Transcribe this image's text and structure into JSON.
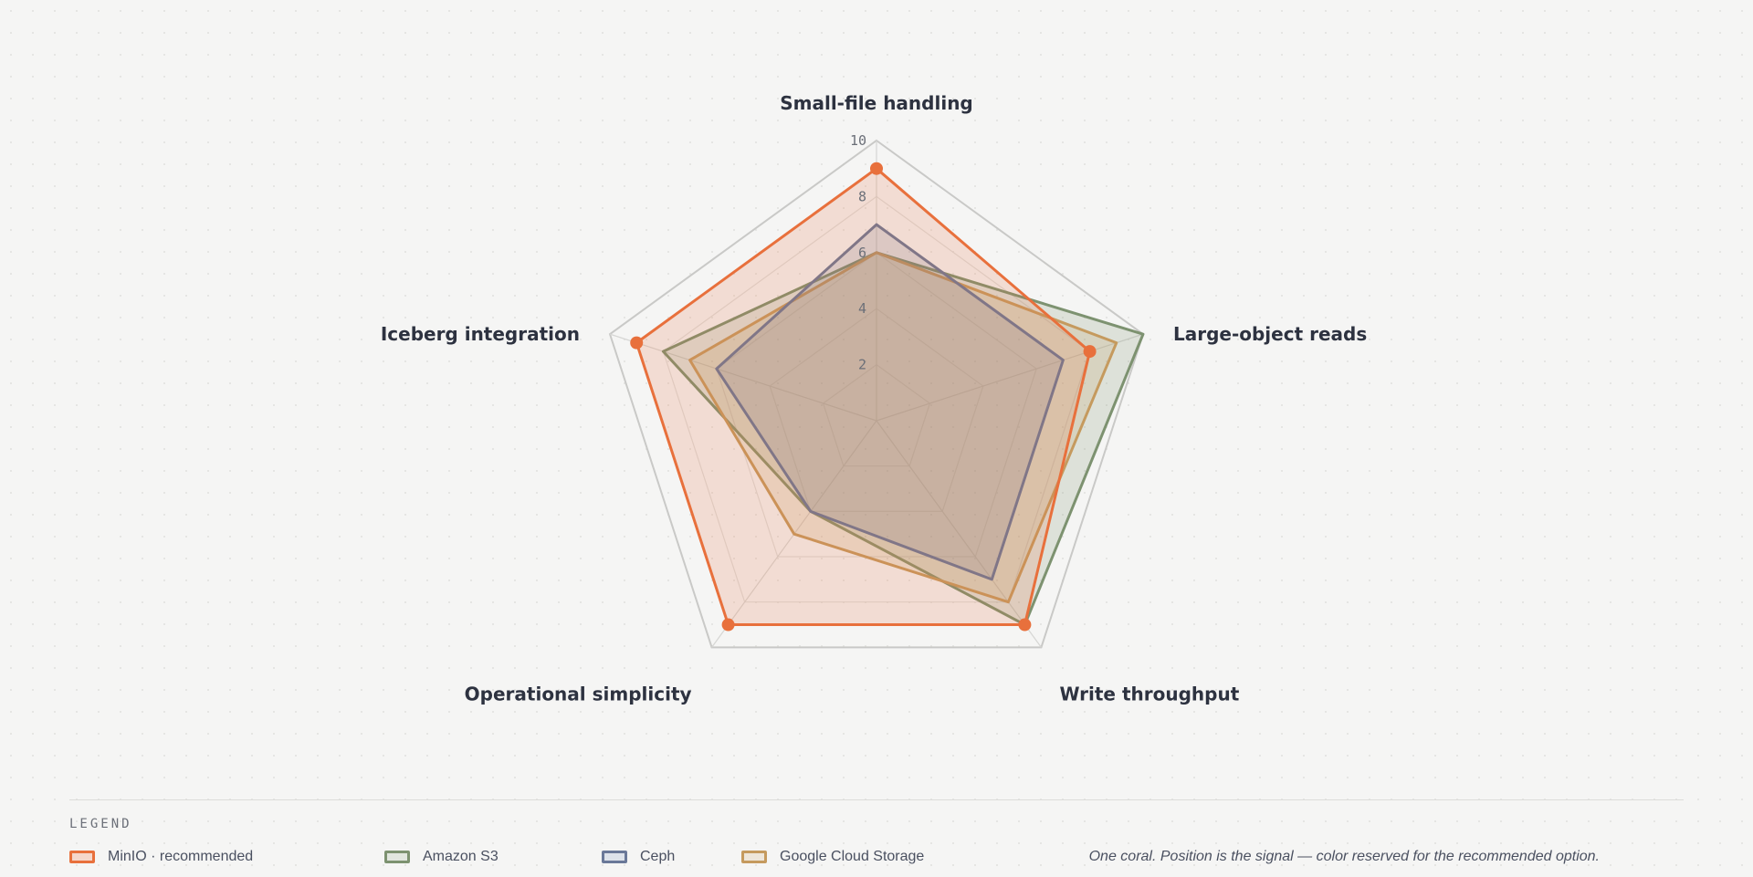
{
  "chart_data": {
    "type": "radar",
    "axes": [
      "Small-file handling",
      "Large-object reads",
      "Write throughput",
      "Operational simplicity",
      "Iceberg integration"
    ],
    "rlim": [
      0,
      10
    ],
    "ticks": [
      "2",
      "4",
      "6",
      "8",
      "10"
    ],
    "grid": true,
    "legend_placement": "bottom",
    "series": [
      {
        "name": "Amazon S3",
        "values": [
          6,
          10,
          9,
          4,
          8
        ],
        "color": "#7d9270",
        "highlight": false
      },
      {
        "name": "Google Cloud Storage",
        "values": [
          6,
          9,
          8,
          5,
          7
        ],
        "color": "#c59a5e",
        "highlight": false
      },
      {
        "name": "Ceph",
        "values": [
          7,
          7,
          7,
          4,
          6
        ],
        "color": "#6a7898",
        "highlight": false
      },
      {
        "name": "MinIO · recommended",
        "values": [
          9,
          8,
          9,
          9,
          9
        ],
        "color": "#e8703c",
        "highlight": true
      }
    ]
  },
  "legend": {
    "title": "LEGEND",
    "items": [
      {
        "label": "MinIO · recommended",
        "color": "#e8703c",
        "fill": "#f5d7cb"
      },
      {
        "label": "Amazon S3",
        "color": "#7d9270",
        "fill": "#e1e6de"
      },
      {
        "label": "Ceph",
        "color": "#6a7898",
        "fill": "#dde2ea"
      },
      {
        "label": "Google Cloud Storage",
        "color": "#c59a5e",
        "fill": "#eee6da"
      }
    ],
    "note": "One coral. Position is the signal — color reserved for the recommended option."
  }
}
